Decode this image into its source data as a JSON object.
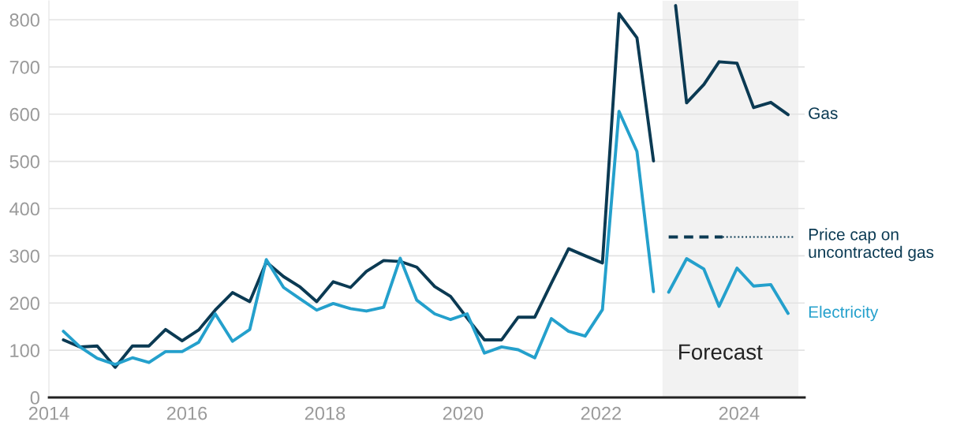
{
  "chart_data": {
    "type": "line",
    "xlim": [
      2014,
      2024.95
    ],
    "xticks": [
      2014,
      2016,
      2018,
      2020,
      2022,
      2024
    ],
    "ylim": [
      0,
      840
    ],
    "yticks": [
      0,
      100,
      200,
      300,
      400,
      500,
      600,
      700,
      800
    ],
    "grid": "y",
    "legend": false,
    "line_style": "solid",
    "marker": "none",
    "bands": [
      {
        "axis": "x",
        "from": 2022.89,
        "to": 2024.86,
        "label": "Forecast",
        "color": "#f2f2f2"
      }
    ],
    "series": [
      {
        "name": "Gas",
        "color": "#0b3a53",
        "x": [
          2014.21,
          2014.45,
          2014.7,
          2014.96,
          2015.21,
          2015.45,
          2015.69,
          2015.93,
          2016.17,
          2016.41,
          2016.66,
          2016.91,
          2017.15,
          2017.4,
          2017.63,
          2017.88,
          2018.12,
          2018.37,
          2018.6,
          2018.85,
          2019.09,
          2019.33,
          2019.59,
          2019.82,
          2020.06,
          2020.31,
          2020.56,
          2020.8,
          2021.04,
          2021.28,
          2021.53,
          2021.77,
          2022.02,
          2022.26,
          2022.52,
          2022.76,
          2022.87,
          2023.08,
          2023.24,
          2023.49,
          2023.71,
          2023.97,
          2024.21,
          2024.46,
          2024.71
        ],
        "values": [
          122,
          107,
          109,
          64,
          109,
          109,
          144,
          120,
          143,
          185,
          222,
          203,
          287,
          256,
          235,
          203,
          245,
          233,
          267,
          290,
          288,
          276,
          235,
          214,
          168,
          122,
          122,
          170,
          170,
          242,
          315,
          300,
          285,
          813,
          762,
          501,
          null,
          830,
          624,
          663,
          711,
          708,
          614,
          625,
          599
        ]
      },
      {
        "name": "Electricity",
        "color": "#24a0cc",
        "x": [
          2014.21,
          2014.45,
          2014.7,
          2014.96,
          2015.21,
          2015.45,
          2015.69,
          2015.93,
          2016.17,
          2016.41,
          2016.66,
          2016.91,
          2017.15,
          2017.4,
          2017.63,
          2017.88,
          2018.12,
          2018.37,
          2018.6,
          2018.85,
          2019.09,
          2019.33,
          2019.59,
          2019.82,
          2020.06,
          2020.31,
          2020.56,
          2020.8,
          2021.04,
          2021.28,
          2021.53,
          2021.77,
          2022.02,
          2022.26,
          2022.52,
          2022.76,
          2022.87,
          2022.98,
          2023.24,
          2023.49,
          2023.71,
          2023.97,
          2024.21,
          2024.46,
          2024.71
        ],
        "values": [
          140,
          107,
          83,
          70,
          84,
          74,
          97,
          97,
          117,
          177,
          119,
          144,
          292,
          233,
          210,
          185,
          199,
          188,
          183,
          191,
          295,
          206,
          177,
          165,
          177,
          94,
          107,
          101,
          84,
          167,
          140,
          130,
          186,
          606,
          521,
          224,
          null,
          223,
          294,
          272,
          193,
          274,
          236,
          239,
          178
        ]
      },
      {
        "name": "Price cap on uncontracted gas",
        "color": "#0b3a53",
        "line_style": "dashed",
        "x": [
          2022.98,
          2023.76
        ],
        "values": [
          340,
          340
        ]
      },
      {
        "color": "#0b3a53",
        "line_style": "dotted",
        "x": [
          2023.76,
          2024.8
        ],
        "values": [
          340,
          340
        ]
      }
    ]
  }
}
